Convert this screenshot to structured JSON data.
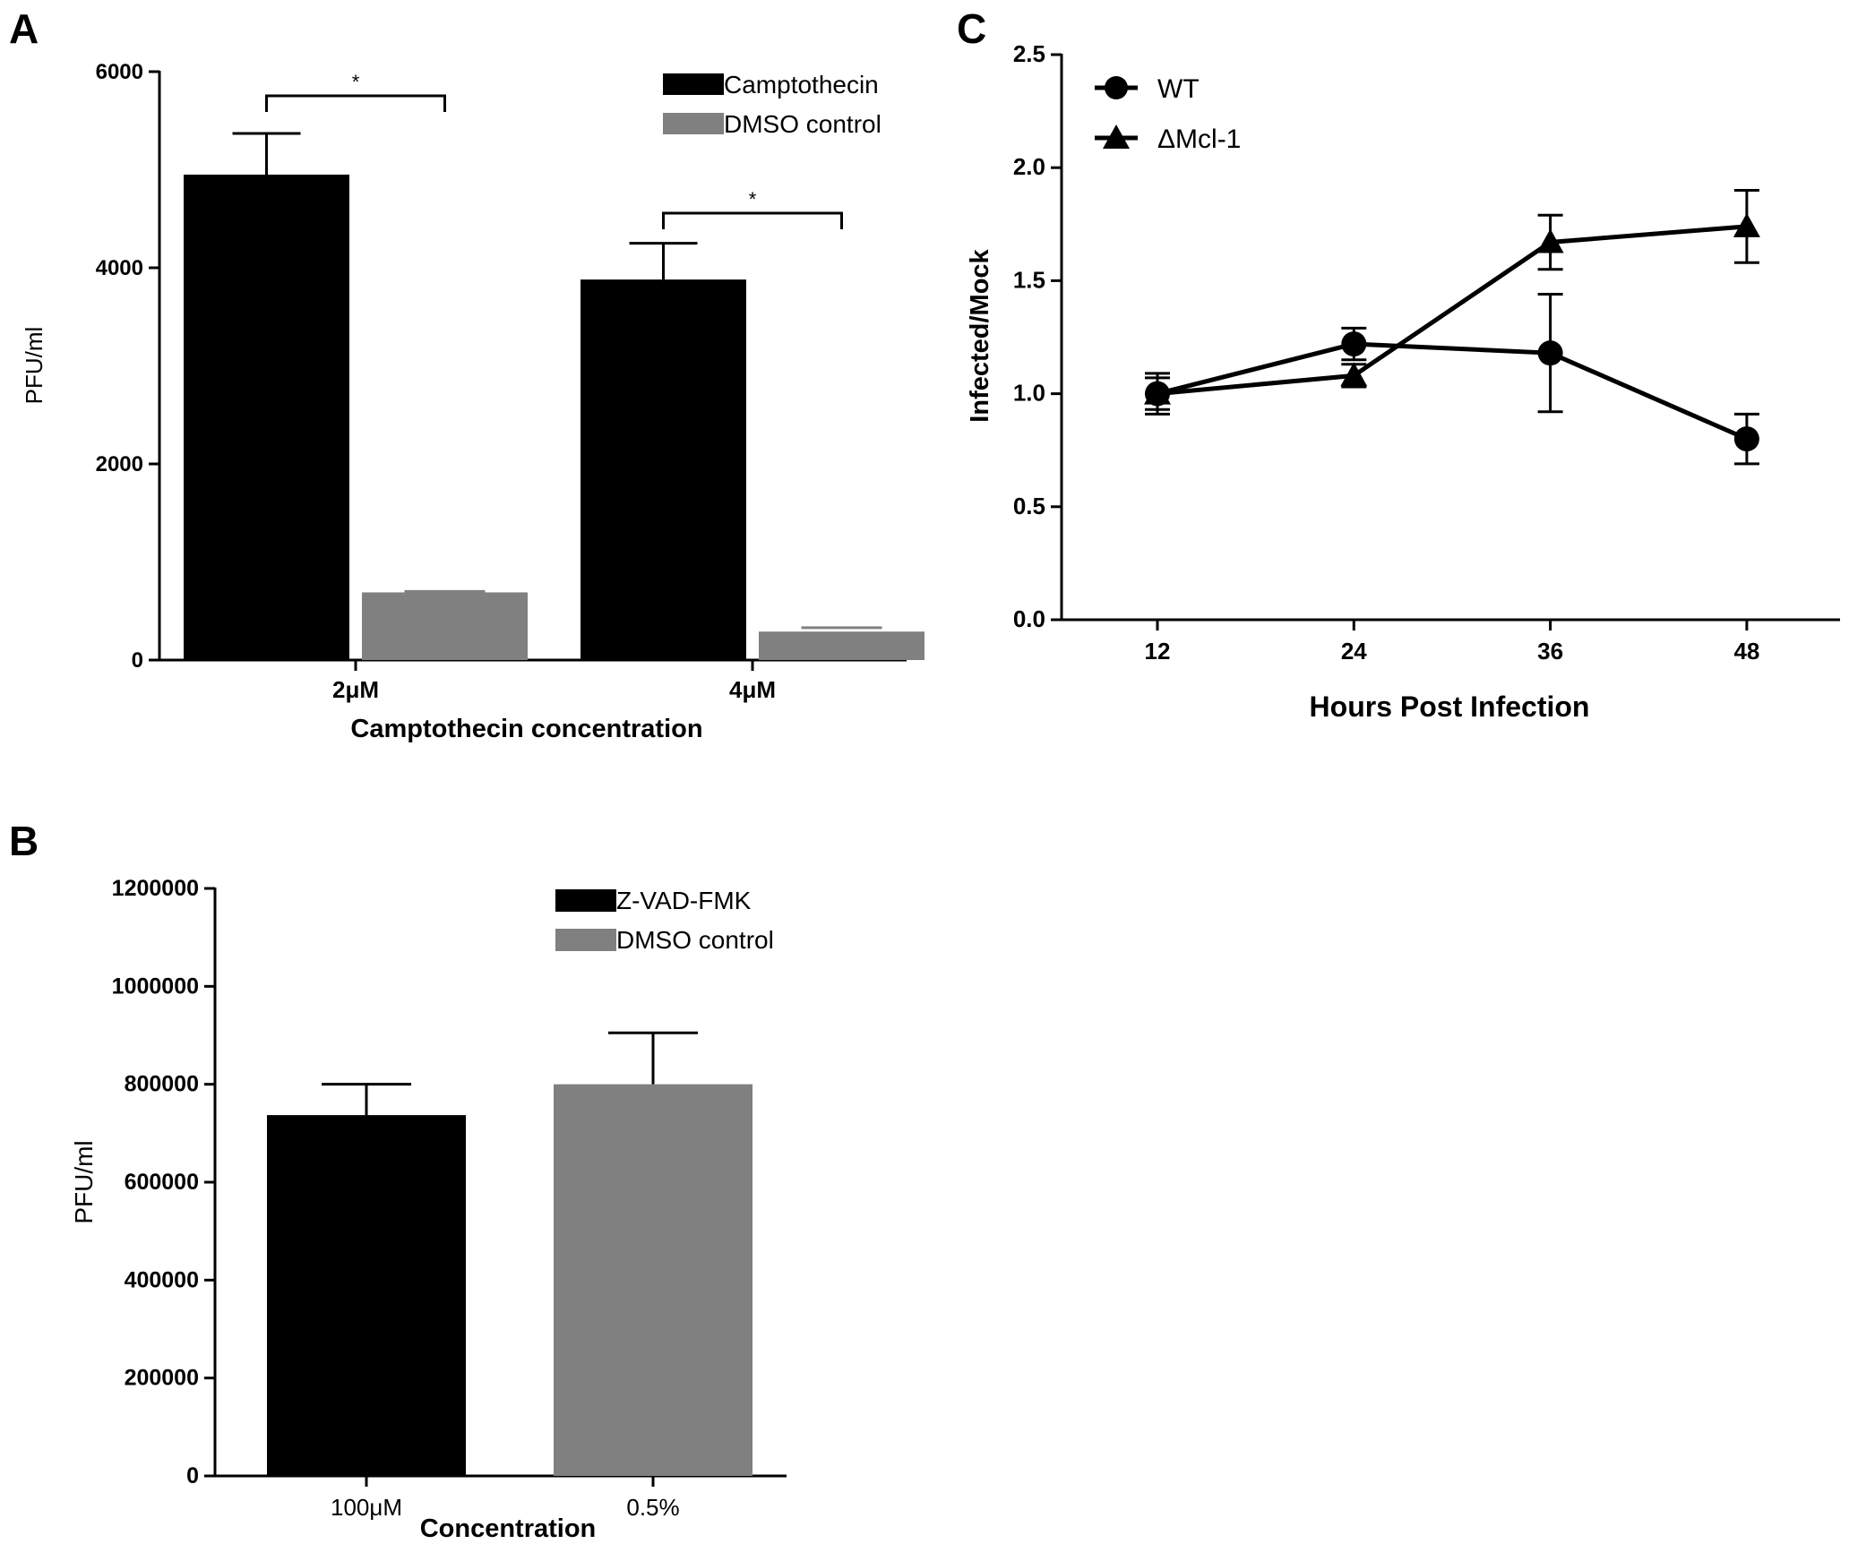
{
  "panel_labels": {
    "a": "A",
    "b": "B",
    "c": "C"
  },
  "chart_data": [
    {
      "id": "A",
      "type": "bar",
      "title": "",
      "xlabel": "Camptothecin concentration",
      "ylabel": "PFU/ml",
      "ylim": [
        0,
        6000
      ],
      "yticks": [
        0,
        2000,
        4000,
        6000
      ],
      "ytick_labels": [
        "0",
        "2000",
        "4000",
        "6000"
      ],
      "categories": [
        "2μM",
        "4μM"
      ],
      "series": [
        {
          "name": "Camptothecin",
          "color": "#000000",
          "values": [
            4950,
            3880
          ],
          "errors": [
            420,
            370
          ]
        },
        {
          "name": "DMSO control",
          "color": "#808080",
          "values": [
            690,
            290
          ],
          "errors": [
            10,
            40
          ]
        }
      ],
      "significance": [
        {
          "category": 0,
          "label": "*"
        },
        {
          "category": 1,
          "label": "*"
        }
      ],
      "legend": "top-right"
    },
    {
      "id": "B",
      "type": "bar",
      "title": "",
      "xlabel": "Concentration",
      "ylabel": "PFU/ml",
      "ylim": [
        0,
        1200000
      ],
      "yticks": [
        0,
        200000,
        400000,
        600000,
        800000,
        1000000,
        1200000
      ],
      "ytick_labels": [
        "0",
        "200000",
        "400000",
        "600000",
        "800000",
        "1000000",
        "1200000"
      ],
      "categories": [
        "100μM",
        "0.5%"
      ],
      "bars": [
        {
          "series": "Z-VAD-FMK",
          "category": "100μM",
          "value": 737000,
          "error": 63000,
          "color": "#000000"
        },
        {
          "series": "DMSO control",
          "category": "0.5%",
          "value": 800000,
          "error": 105000,
          "color": "#808080"
        }
      ],
      "legend_entries": [
        {
          "name": "Z-VAD-FMK",
          "color": "#000000"
        },
        {
          "name": "DMSO control",
          "color": "#808080"
        }
      ],
      "legend": "top-center"
    },
    {
      "id": "C",
      "type": "line",
      "title": "",
      "xlabel": "Hours Post Infection",
      "ylabel": "Infected/Mock",
      "ylim": [
        0.0,
        2.5
      ],
      "yticks": [
        0.0,
        0.5,
        1.0,
        1.5,
        2.0,
        2.5
      ],
      "ytick_labels": [
        "0.0",
        "0.5",
        "1.0",
        "1.5",
        "2.0",
        "2.5"
      ],
      "x": [
        12,
        24,
        36,
        48
      ],
      "xtick_labels": [
        "12",
        "24",
        "36",
        "48"
      ],
      "series": [
        {
          "name": "WT",
          "marker": "circle",
          "values": [
            1.0,
            1.22,
            1.18,
            0.8
          ],
          "errors": [
            0.09,
            0.07,
            0.26,
            0.11
          ]
        },
        {
          "name": "ΔMcl-1",
          "marker": "triangle",
          "values": [
            1.0,
            1.08,
            1.67,
            1.74
          ],
          "errors": [
            0.07,
            0.05,
            0.12,
            0.16
          ]
        }
      ],
      "legend": "top-left"
    }
  ]
}
